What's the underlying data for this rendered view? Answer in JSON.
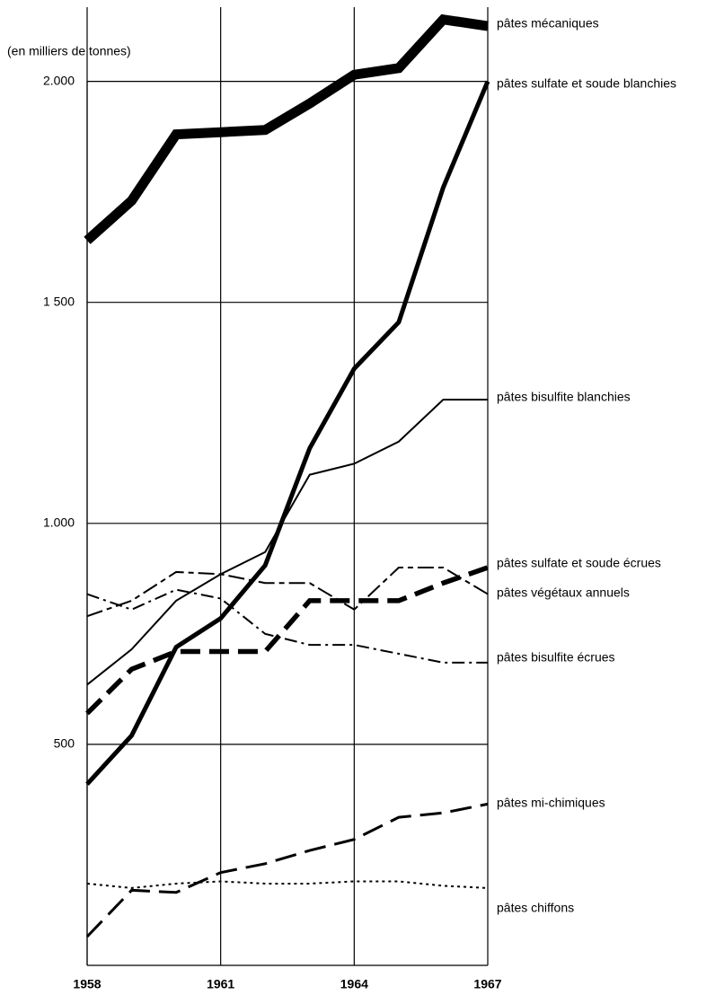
{
  "chart_data": {
    "type": "line",
    "y_label": "(en milliers de tonnes)",
    "x": [
      1958,
      1959,
      1960,
      1961,
      1962,
      1963,
      1964,
      1965,
      1966,
      1967
    ],
    "xlim": [
      1958,
      1967
    ],
    "xticks": [
      1958,
      1961,
      1964,
      1967
    ],
    "ylim": [
      0,
      2180
    ],
    "yticks": [
      500,
      {
        "value": 1000,
        "label": "1.000"
      },
      {
        "value": 1500,
        "label": "1 500"
      },
      {
        "value": 2000,
        "label": "2.000"
      }
    ],
    "grid": true,
    "series": [
      {
        "name": "pâtes mécaniques",
        "color": "#000000",
        "values": [
          1640,
          1730,
          1880,
          1885,
          1890,
          1950,
          2015,
          2030,
          2140,
          2125
        ]
      },
      {
        "name": "pâtes sulfate et soude blanchies",
        "color": "#000000",
        "values": [
          410,
          520,
          720,
          785,
          905,
          1170,
          1350,
          1455,
          1760,
          2000
        ]
      },
      {
        "name": "pâtes bisulfite blanchies",
        "color": "#000000",
        "values": [
          635,
          715,
          825,
          885,
          935,
          1110,
          1135,
          1185,
          1280,
          1280
        ]
      },
      {
        "name": "pâtes sulfate et soude écrues",
        "color": "#000000",
        "values": [
          570,
          670,
          710,
          710,
          710,
          825,
          825,
          825,
          865,
          900
        ]
      },
      {
        "name": "pâtes végétaux annuels",
        "color": "#000000",
        "values": [
          790,
          825,
          890,
          885,
          865,
          865,
          805,
          900,
          900,
          840
        ]
      },
      {
        "name": "pâtes bisulfite écrues",
        "color": "#000000",
        "values": [
          840,
          805,
          850,
          830,
          750,
          725,
          725,
          705,
          685,
          685
        ]
      },
      {
        "name": "pâtes mi-chimiques",
        "color": "#000000",
        "values": [
          65,
          170,
          165,
          210,
          230,
          260,
          285,
          335,
          345,
          365
        ]
      },
      {
        "name": "pâtes chiffons",
        "color": "#000000",
        "values": [
          185,
          175,
          185,
          190,
          185,
          185,
          190,
          190,
          180,
          175
        ]
      }
    ]
  }
}
